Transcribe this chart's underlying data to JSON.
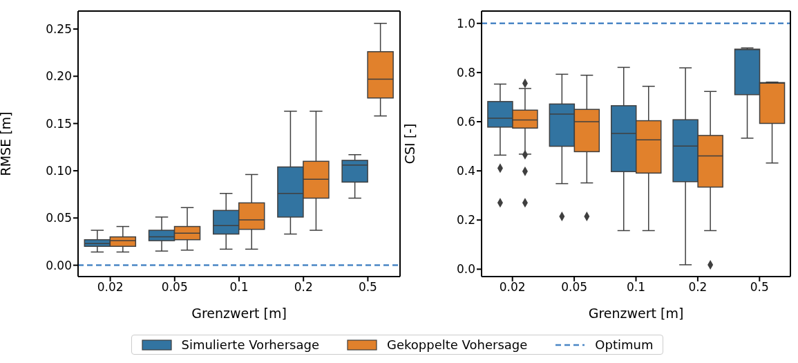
{
  "chart_data": [
    {
      "type": "box",
      "xlabel": "Grenzwert [m]",
      "ylabel": "RMSE [m]",
      "categories": [
        "0.02",
        "0.05",
        "0.1",
        "0.2",
        "0.5"
      ],
      "ylim": [
        -0.012,
        0.269
      ],
      "yticks": [
        {
          "value": 0,
          "label": "0.00"
        },
        {
          "value": 0.05,
          "label": "0.05"
        },
        {
          "value": 0.1,
          "label": "0.10"
        },
        {
          "value": 0.15,
          "label": "0.15"
        },
        {
          "value": 0.2,
          "label": "0.20"
        },
        {
          "value": 0.25,
          "label": "0.25"
        }
      ],
      "legend": "bottom",
      "series": [
        {
          "name": "Simulierte Vorhersage",
          "color": "#3274a1",
          "boxes": [
            {
              "low": 0.014,
              "q1": 0.02,
              "median": 0.023,
              "q3": 0.027,
              "high": 0.037
            },
            {
              "low": 0.015,
              "q1": 0.026,
              "median": 0.03,
              "q3": 0.037,
              "high": 0.051
            },
            {
              "low": 0.017,
              "q1": 0.033,
              "median": 0.042,
              "q3": 0.058,
              "high": 0.076
            },
            {
              "low": 0.033,
              "q1": 0.051,
              "median": 0.076,
              "q3": 0.104,
              "high": 0.163
            },
            {
              "low": 0.071,
              "q1": 0.088,
              "median": 0.106,
              "q3": 0.111,
              "high": 0.117
            }
          ]
        },
        {
          "name": "Gekoppelte Vohersage",
          "color": "#e1812c",
          "boxes": [
            {
              "low": 0.014,
              "q1": 0.02,
              "median": 0.026,
              "q3": 0.03,
              "high": 0.041
            },
            {
              "low": 0.016,
              "q1": 0.027,
              "median": 0.034,
              "q3": 0.041,
              "high": 0.061
            },
            {
              "low": 0.017,
              "q1": 0.038,
              "median": 0.048,
              "q3": 0.066,
              "high": 0.096
            },
            {
              "low": 0.037,
              "q1": 0.071,
              "median": 0.091,
              "q3": 0.11,
              "high": 0.163
            },
            {
              "low": 0.158,
              "q1": 0.177,
              "median": 0.197,
              "q3": 0.226,
              "high": 0.256
            }
          ]
        }
      ],
      "ref_lines": [
        {
          "axis": "y",
          "value": 0,
          "color": "#4a86c5",
          "line_style": "dashed"
        }
      ]
    },
    {
      "type": "box",
      "xlabel": "Grenzwert [m]",
      "ylabel": "CSI [-]",
      "categories": [
        "0.02",
        "0.05",
        "0.1",
        "0.2",
        "0.5"
      ],
      "ylim": [
        -0.03,
        1.05
      ],
      "yticks": [
        {
          "value": 0,
          "label": "0.0"
        },
        {
          "value": 0.2,
          "label": "0.2"
        },
        {
          "value": 0.4,
          "label": "0.4"
        },
        {
          "value": 0.6,
          "label": "0.6"
        },
        {
          "value": 0.8,
          "label": "0.8"
        },
        {
          "value": 1,
          "label": "1.0"
        }
      ],
      "legend": "bottom",
      "marker": "diamond",
      "series": [
        {
          "name": "Simulierte Vorhersage",
          "color": "#3274a1",
          "boxes": [
            {
              "low": 0.464,
              "q1": 0.578,
              "median": 0.614,
              "q3": 0.682,
              "high": 0.753,
              "outliers": [
                0.411,
                0.27
              ]
            },
            {
              "low": 0.348,
              "q1": 0.5,
              "median": 0.631,
              "q3": 0.672,
              "high": 0.793,
              "outliers": [
                0.215
              ]
            },
            {
              "low": 0.157,
              "q1": 0.397,
              "median": 0.552,
              "q3": 0.665,
              "high": 0.821
            },
            {
              "low": 0.018,
              "q1": 0.356,
              "median": 0.501,
              "q3": 0.608,
              "high": 0.819
            },
            {
              "low": 0.533,
              "q1": 0.71,
              "median": 0.893,
              "q3": 0.895,
              "high": 0.9
            }
          ]
        },
        {
          "name": "Gekoppelte Vohersage",
          "color": "#e1812c",
          "boxes": [
            {
              "low": 0.468,
              "q1": 0.574,
              "median": 0.607,
              "q3": 0.647,
              "high": 0.735,
              "outliers": [
                0.756,
                0.466,
                0.398,
                0.27
              ]
            },
            {
              "low": 0.351,
              "q1": 0.478,
              "median": 0.6,
              "q3": 0.65,
              "high": 0.789,
              "outliers": [
                0.215
              ]
            },
            {
              "low": 0.157,
              "q1": 0.391,
              "median": 0.526,
              "q3": 0.604,
              "high": 0.744
            },
            {
              "low": 0.157,
              "q1": 0.334,
              "median": 0.461,
              "q3": 0.544,
              "high": 0.723,
              "outliers": [
                0.018
              ]
            },
            {
              "low": 0.432,
              "q1": 0.593,
              "median": 0.757,
              "q3": 0.759,
              "high": 0.761
            }
          ]
        }
      ],
      "ref_lines": [
        {
          "axis": "y",
          "value": 1,
          "label": "Optimum",
          "color": "#4a86c5",
          "line_style": "dashed"
        }
      ]
    }
  ]
}
